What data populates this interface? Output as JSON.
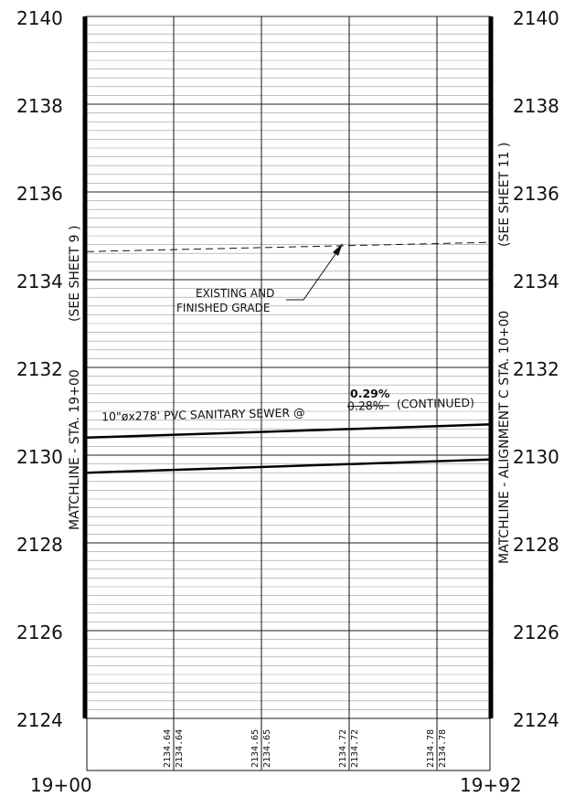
{
  "elevation_labels": [
    "2140",
    "2138",
    "2136",
    "2134",
    "2132",
    "2130",
    "2128",
    "2126",
    "2124"
  ],
  "station_labels": {
    "start": "19+00",
    "end": "19+92"
  },
  "matchline_left": {
    "main": "MATCHLINE - STA. 19+00",
    "ref": "(SEE SHEET  9 )"
  },
  "matchline_right": {
    "main": "MATCHLINE - ALIGNMENT C STA. 10+00",
    "ref": "(SEE SHEET 11 )"
  },
  "grade_note": {
    "line1": "EXISTING  AND",
    "line2": "FINISHED GRADE"
  },
  "sewer_note": {
    "prefix": "10\"øx278' PVC SANITARY SEWER @",
    "old_slope": "0.28%",
    "suffix": "(CONTINUED)",
    "new_slope": "0.29%"
  },
  "grade_values": [
    {
      "existing": "2134.64",
      "finished": "2134.64"
    },
    {
      "existing": "2134.65",
      "finished": "2134.65"
    },
    {
      "existing": "2134.72",
      "finished": "2134.72"
    },
    {
      "existing": "2134.78",
      "finished": "2134.78"
    }
  ],
  "profile_data": {
    "elevation_range": [
      2124,
      2140
    ],
    "existing_grade": {
      "start": 2134.64,
      "end": 2134.85,
      "style": "dashed"
    },
    "pipe_top": {
      "start": 2130.4,
      "end": 2130.7
    },
    "pipe_bottom": {
      "start": 2129.6,
      "end": 2129.9
    }
  }
}
